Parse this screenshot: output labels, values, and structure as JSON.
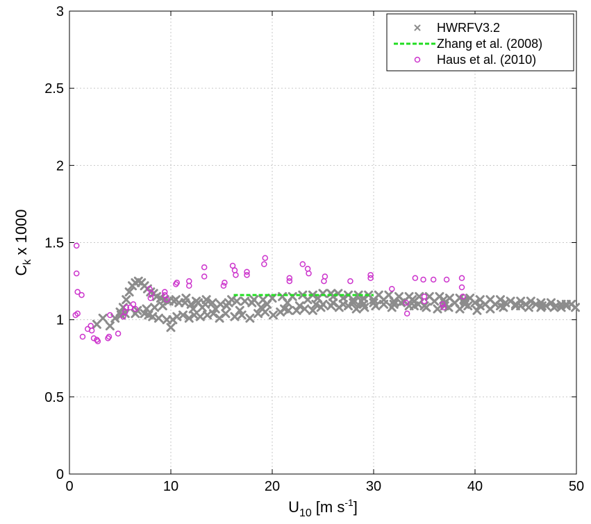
{
  "chart_data": {
    "type": "scatter",
    "xlabel": {
      "main": "U",
      "sub": "10",
      "unit_prefix": "[m s",
      "unit_sup": "-1",
      "unit_suffix": "]"
    },
    "ylabel": {
      "main": "C",
      "sub": "k",
      "suffix": " x 1000"
    },
    "xlim": [
      0,
      50
    ],
    "ylim": [
      0,
      3
    ],
    "xticks": [
      "0",
      "10",
      "20",
      "30",
      "40",
      "50"
    ],
    "yticks": [
      "0",
      "0.5",
      "1",
      "1.5",
      "2",
      "2.5",
      "3"
    ],
    "grid": true,
    "legend_position": "top-right",
    "series": [
      {
        "name": "HWRFV3.2",
        "marker": "x",
        "color": "#8c8c8c",
        "points": [
          [
            2.7,
            0.97
          ],
          [
            3.3,
            1.01
          ],
          [
            4.0,
            0.96
          ],
          [
            4.5,
            1.01
          ],
          [
            5.1,
            1.03
          ],
          [
            5.5,
            1.04
          ],
          [
            6.5,
            1.04
          ],
          [
            7.4,
            1.04
          ],
          [
            7.8,
            1.03
          ],
          [
            8.2,
            1.02
          ],
          [
            8.8,
            1.01
          ],
          [
            9.6,
            1.0
          ],
          [
            10.0,
            0.95
          ],
          [
            10.2,
            1.0
          ],
          [
            10.6,
            1.02
          ],
          [
            11.2,
            1.03
          ],
          [
            11.8,
            1.01
          ],
          [
            12.3,
            1.03
          ],
          [
            12.9,
            1.02
          ],
          [
            13.6,
            1.03
          ],
          [
            14.2,
            1.04
          ],
          [
            14.8,
            1.01
          ],
          [
            15.4,
            1.04
          ],
          [
            16.3,
            1.02
          ],
          [
            17.0,
            1.03
          ],
          [
            17.8,
            1.01
          ],
          [
            18.6,
            1.04
          ],
          [
            19.3,
            1.05
          ],
          [
            20.1,
            1.03
          ],
          [
            20.8,
            1.05
          ],
          [
            21.6,
            1.06
          ],
          [
            22.4,
            1.06
          ],
          [
            23.2,
            1.07
          ],
          [
            24.0,
            1.06
          ],
          [
            24.8,
            1.08
          ],
          [
            25.8,
            1.09
          ],
          [
            26.6,
            1.08
          ],
          [
            27.5,
            1.09
          ],
          [
            28.3,
            1.07
          ],
          [
            29.1,
            1.08
          ],
          [
            30.2,
            1.09
          ],
          [
            31.0,
            1.1
          ],
          [
            31.8,
            1.08
          ],
          [
            32.7,
            1.11
          ],
          [
            33.5,
            1.09
          ],
          [
            34.4,
            1.1
          ],
          [
            35.2,
            1.08
          ],
          [
            36.3,
            1.07
          ],
          [
            37.4,
            1.08
          ],
          [
            38.5,
            1.07
          ],
          [
            39.3,
            1.09
          ],
          [
            40.2,
            1.06
          ],
          [
            41.5,
            1.07
          ],
          [
            42.8,
            1.08
          ],
          [
            44.0,
            1.09
          ],
          [
            45.3,
            1.08
          ],
          [
            46.6,
            1.09
          ],
          [
            47.8,
            1.08
          ],
          [
            49.0,
            1.09
          ],
          [
            49.9,
            1.08
          ],
          [
            5.0,
            1.05
          ],
          [
            5.3,
            1.08
          ],
          [
            5.6,
            1.13
          ],
          [
            5.9,
            1.18
          ],
          [
            6.2,
            1.22
          ],
          [
            6.5,
            1.24
          ],
          [
            6.8,
            1.25
          ],
          [
            7.1,
            1.24
          ],
          [
            7.4,
            1.22
          ],
          [
            7.7,
            1.2
          ],
          [
            8.0,
            1.18
          ],
          [
            8.3,
            1.17
          ],
          [
            8.6,
            1.15
          ],
          [
            9.0,
            1.14
          ],
          [
            9.4,
            1.13
          ],
          [
            9.8,
            1.12
          ],
          [
            10.3,
            1.12
          ],
          [
            10.8,
            1.11
          ],
          [
            11.4,
            1.11
          ],
          [
            12.0,
            1.1
          ],
          [
            12.7,
            1.11
          ],
          [
            13.4,
            1.1
          ],
          [
            14.1,
            1.11
          ],
          [
            14.9,
            1.1
          ],
          [
            15.7,
            1.11
          ],
          [
            16.5,
            1.12
          ],
          [
            17.3,
            1.12
          ],
          [
            18.2,
            1.13
          ],
          [
            19.1,
            1.13
          ],
          [
            20.0,
            1.14
          ],
          [
            21.0,
            1.15
          ],
          [
            22.0,
            1.15
          ],
          [
            23.0,
            1.16
          ],
          [
            24.0,
            1.16
          ],
          [
            25.0,
            1.17
          ],
          [
            25.8,
            1.17
          ],
          [
            26.5,
            1.17
          ],
          [
            27.5,
            1.16
          ],
          [
            28.5,
            1.16
          ],
          [
            29.5,
            1.16
          ],
          [
            30.5,
            1.16
          ],
          [
            31.5,
            1.16
          ],
          [
            32.5,
            1.15
          ],
          [
            33.5,
            1.15
          ],
          [
            34.5,
            1.15
          ],
          [
            35.5,
            1.15
          ],
          [
            36.5,
            1.15
          ],
          [
            37.5,
            1.14
          ],
          [
            38.5,
            1.14
          ],
          [
            39.5,
            1.14
          ],
          [
            40.5,
            1.13
          ],
          [
            41.5,
            1.13
          ],
          [
            42.5,
            1.13
          ],
          [
            43.5,
            1.12
          ],
          [
            44.5,
            1.12
          ],
          [
            45.5,
            1.12
          ],
          [
            46.5,
            1.11
          ],
          [
            47.5,
            1.11
          ],
          [
            48.5,
            1.1
          ],
          [
            49.5,
            1.1
          ],
          [
            10.5,
            1.13
          ],
          [
            11.5,
            1.14
          ],
          [
            12.5,
            1.12
          ],
          [
            13.5,
            1.13
          ],
          [
            15.5,
            1.09
          ],
          [
            16.0,
            1.13
          ],
          [
            18.0,
            1.11
          ],
          [
            19.5,
            1.1
          ],
          [
            21.5,
            1.11
          ],
          [
            23.5,
            1.13
          ],
          [
            24.5,
            1.14
          ],
          [
            26.0,
            1.15
          ],
          [
            27.0,
            1.14
          ],
          [
            28.0,
            1.13
          ],
          [
            29.0,
            1.14
          ],
          [
            30.0,
            1.13
          ],
          [
            31.0,
            1.13
          ],
          [
            32.0,
            1.12
          ],
          [
            33.0,
            1.12
          ],
          [
            34.0,
            1.12
          ],
          [
            36.0,
            1.12
          ],
          [
            37.0,
            1.11
          ],
          [
            38.0,
            1.11
          ],
          [
            39.0,
            1.12
          ],
          [
            40.0,
            1.11
          ],
          [
            41.0,
            1.1
          ],
          [
            42.0,
            1.1
          ],
          [
            43.0,
            1.11
          ],
          [
            44.0,
            1.1
          ],
          [
            45.0,
            1.1
          ],
          [
            46.0,
            1.1
          ],
          [
            47.0,
            1.09
          ],
          [
            48.0,
            1.09
          ],
          [
            49.0,
            1.1
          ],
          [
            25.0,
            1.1
          ],
          [
            26.0,
            1.11
          ],
          [
            27.0,
            1.1
          ],
          [
            28.0,
            1.11
          ],
          [
            29.0,
            1.1
          ],
          [
            30.0,
            1.11
          ],
          [
            32.0,
            1.1
          ],
          [
            34.0,
            1.09
          ],
          [
            35.0,
            1.09
          ],
          [
            37.0,
            1.09
          ],
          [
            39.0,
            1.1
          ],
          [
            40.5,
            1.09
          ],
          [
            42.5,
            1.09
          ],
          [
            44.5,
            1.09
          ],
          [
            46.5,
            1.08
          ],
          [
            48.5,
            1.08
          ],
          [
            9.2,
            1.09
          ],
          [
            8.4,
            1.08
          ],
          [
            7.6,
            1.07
          ],
          [
            6.7,
            1.06
          ],
          [
            12.2,
            1.07
          ],
          [
            13.1,
            1.08
          ],
          [
            14.4,
            1.07
          ],
          [
            16.8,
            1.06
          ],
          [
            18.9,
            1.08
          ],
          [
            21.2,
            1.07
          ],
          [
            22.7,
            1.09
          ],
          [
            24.3,
            1.1
          ],
          [
            28.8,
            1.12
          ],
          [
            33.8,
            1.13
          ],
          [
            36.9,
            1.13
          ],
          [
            38.9,
            1.13
          ]
        ]
      },
      {
        "name": "Zhang et al. (2008)",
        "marker": "dashed-line",
        "color": "#22dd22",
        "points": [
          [
            16.2,
            1.16
          ],
          [
            30.0,
            1.16
          ]
        ]
      },
      {
        "name": "Haus et al. (2010)",
        "marker": "o",
        "color": "#cc33cc",
        "points": [
          [
            0.7,
            1.48
          ],
          [
            0.7,
            1.3
          ],
          [
            0.8,
            1.18
          ],
          [
            1.2,
            1.16
          ],
          [
            0.6,
            1.03
          ],
          [
            0.8,
            1.04
          ],
          [
            1.3,
            0.89
          ],
          [
            1.8,
            0.94
          ],
          [
            2.1,
            0.96
          ],
          [
            2.2,
            0.93
          ],
          [
            2.4,
            0.88
          ],
          [
            2.7,
            0.87
          ],
          [
            2.8,
            0.86
          ],
          [
            3.8,
            0.88
          ],
          [
            3.9,
            0.89
          ],
          [
            4.0,
            1.03
          ],
          [
            4.8,
            0.91
          ],
          [
            5.3,
            1.02
          ],
          [
            5.5,
            1.05
          ],
          [
            5.6,
            1.08
          ],
          [
            6.0,
            1.08
          ],
          [
            6.3,
            1.1
          ],
          [
            6.5,
            1.07
          ],
          [
            7.9,
            1.2
          ],
          [
            8.1,
            1.17
          ],
          [
            8.0,
            1.14
          ],
          [
            9.4,
            1.18
          ],
          [
            9.4,
            1.16
          ],
          [
            9.6,
            1.13
          ],
          [
            10.5,
            1.23
          ],
          [
            10.6,
            1.24
          ],
          [
            11.8,
            1.22
          ],
          [
            11.8,
            1.25
          ],
          [
            13.3,
            1.28
          ],
          [
            13.3,
            1.34
          ],
          [
            15.2,
            1.22
          ],
          [
            15.3,
            1.24
          ],
          [
            16.1,
            1.35
          ],
          [
            16.3,
            1.32
          ],
          [
            16.4,
            1.29
          ],
          [
            17.5,
            1.31
          ],
          [
            17.5,
            1.29
          ],
          [
            19.2,
            1.36
          ],
          [
            19.3,
            1.4
          ],
          [
            21.7,
            1.25
          ],
          [
            21.7,
            1.27
          ],
          [
            23.0,
            1.36
          ],
          [
            23.5,
            1.33
          ],
          [
            23.6,
            1.3
          ],
          [
            25.1,
            1.25
          ],
          [
            25.2,
            1.28
          ],
          [
            27.7,
            1.25
          ],
          [
            29.7,
            1.29
          ],
          [
            29.7,
            1.27
          ],
          [
            31.8,
            1.2
          ],
          [
            33.2,
            1.11
          ],
          [
            33.3,
            1.04
          ],
          [
            34.1,
            1.27
          ],
          [
            34.9,
            1.26
          ],
          [
            35.0,
            1.15
          ],
          [
            35.0,
            1.12
          ],
          [
            35.9,
            1.26
          ],
          [
            36.8,
            1.1
          ],
          [
            36.9,
            1.08
          ],
          [
            37.2,
            1.26
          ],
          [
            38.7,
            1.27
          ],
          [
            38.7,
            1.21
          ],
          [
            38.8,
            1.15
          ]
        ]
      }
    ]
  }
}
